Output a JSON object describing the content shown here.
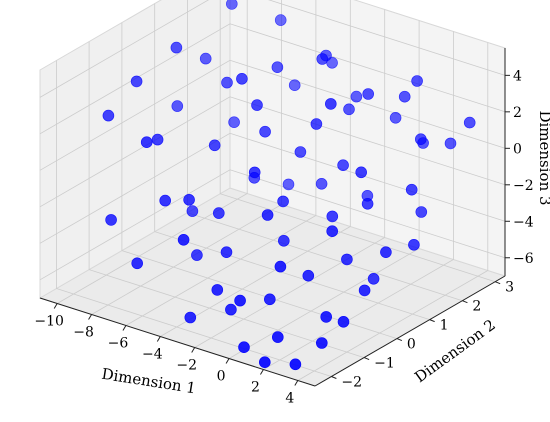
{
  "chart_data": {
    "type": "scatter",
    "title": "",
    "xlabel": "Dimension 1",
    "ylabel": "Dimension 2",
    "zlabel": "Dimension 3",
    "x_ticks": [
      "−10",
      "−8",
      "−6",
      "−4",
      "−2",
      "0",
      "2",
      "4"
    ],
    "y_ticks": [
      "−2",
      "−1",
      "0",
      "1",
      "2",
      "3"
    ],
    "z_ticks": [
      "−6",
      "−4",
      "−2",
      "0",
      "2",
      "4"
    ],
    "xlim": [
      -11,
      5
    ],
    "ylim": [
      -2.5,
      3.3
    ],
    "zlim": [
      -7,
      5.5
    ],
    "grid": true,
    "point_color": "#0000ff",
    "points_xyz": [
      [
        -9.5,
        -1.2,
        2.1
      ],
      [
        -9.0,
        -0.6,
        3.5
      ],
      [
        -8.4,
        0.3,
        4.6
      ],
      [
        -8.8,
        2.2,
        4.9
      ],
      [
        -7.4,
        -0.8,
        1.0
      ],
      [
        -6.6,
        0.9,
        2.6
      ],
      [
        -6.0,
        -1.3,
        -1.4
      ],
      [
        -5.6,
        0.0,
        0.4
      ],
      [
        -5.0,
        1.6,
        3.2
      ],
      [
        -4.6,
        -0.4,
        -2.6
      ],
      [
        -4.0,
        0.7,
        0.9
      ],
      [
        -3.7,
        2.4,
        3.4
      ],
      [
        -3.2,
        -0.9,
        -3.8
      ],
      [
        -2.9,
        1.2,
        -0.4
      ],
      [
        -2.4,
        -1.6,
        -4.9
      ],
      [
        -2.0,
        0.2,
        -1.8
      ],
      [
        -1.6,
        2.0,
        1.5
      ],
      [
        -1.2,
        -0.2,
        -3.3
      ],
      [
        -0.8,
        1.4,
        -0.7
      ],
      [
        -0.3,
        -1.1,
        -5.3
      ],
      [
        0.1,
        0.6,
        -2.4
      ],
      [
        0.5,
        2.6,
        2.2
      ],
      [
        0.8,
        -0.5,
        -4.3
      ],
      [
        1.2,
        1.1,
        -1.9
      ],
      [
        1.5,
        -1.8,
        -6.1
      ],
      [
        1.9,
        0.1,
        -3.7
      ],
      [
        2.2,
        2.2,
        0.8
      ],
      [
        2.6,
        -0.9,
        -5.6
      ],
      [
        3.0,
        1.5,
        -1.0
      ],
      [
        3.3,
        -1.4,
        -6.3
      ],
      [
        3.6,
        0.4,
        -3.1
      ],
      [
        3.9,
        2.8,
        1.6
      ],
      [
        -7.9,
        1.8,
        -0.9
      ],
      [
        -6.9,
        0.0,
        -3.6
      ],
      [
        -5.9,
        2.6,
        0.9
      ],
      [
        -5.3,
        -0.7,
        -4.8
      ],
      [
        -4.3,
        2.9,
        2.3
      ],
      [
        -3.4,
        -1.9,
        -6.4
      ],
      [
        -2.5,
        2.7,
        1.2
      ],
      [
        -1.8,
        -1.5,
        -5.9
      ],
      [
        -0.6,
        2.9,
        0.4
      ],
      [
        0.3,
        -2.2,
        -6.6
      ],
      [
        1.0,
        2.9,
        -0.5
      ],
      [
        1.7,
        -2.3,
        -6.9
      ],
      [
        2.4,
        3.0,
        -0.2
      ],
      [
        3.1,
        -2.1,
        -6.8
      ],
      [
        -8.2,
        -1.8,
        -2.6
      ],
      [
        -6.3,
        -2.0,
        -4.2
      ],
      [
        -4.8,
        -1.2,
        -1.1
      ],
      [
        -3.9,
        0.4,
        2.7
      ],
      [
        -2.7,
        -0.3,
        0.1
      ],
      [
        -1.4,
        0.9,
        1.9
      ],
      [
        -0.1,
        1.8,
        3.0
      ],
      [
        1.4,
        0.8,
        0.2
      ],
      [
        2.8,
        1.9,
        -2.7
      ],
      [
        3.5,
        -0.2,
        -4.6
      ],
      [
        -9.3,
        0.8,
        0.6
      ],
      [
        -7.1,
        2.8,
        3.9
      ],
      [
        -5.2,
        1.0,
        -2.3
      ],
      [
        -3.0,
        1.9,
        -2.9
      ],
      [
        -1.0,
        -0.8,
        -1.2
      ],
      [
        0.7,
        -1.3,
        -3.0
      ],
      [
        2.0,
        -0.4,
        -1.6
      ],
      [
        -6.7,
        -1.5,
        1.8
      ],
      [
        -4.4,
        0.2,
        4.2
      ],
      [
        -2.2,
        1.5,
        4.6
      ],
      [
        0.2,
        0.5,
        3.9
      ],
      [
        1.6,
        2.4,
        3.6
      ],
      [
        -8.6,
        1.3,
        2.9
      ],
      [
        -3.6,
        -2.0,
        -2.1
      ],
      [
        -1.1,
        2.3,
        -3.4
      ],
      [
        2.5,
        0.6,
        -5.1
      ],
      [
        3.7,
        1.2,
        -3.5
      ],
      [
        3.8,
        -1.0,
        -5.4
      ],
      [
        -5.5,
        2.2,
        -4.0
      ],
      [
        -0.5,
        -1.9,
        -4.6
      ]
    ]
  }
}
